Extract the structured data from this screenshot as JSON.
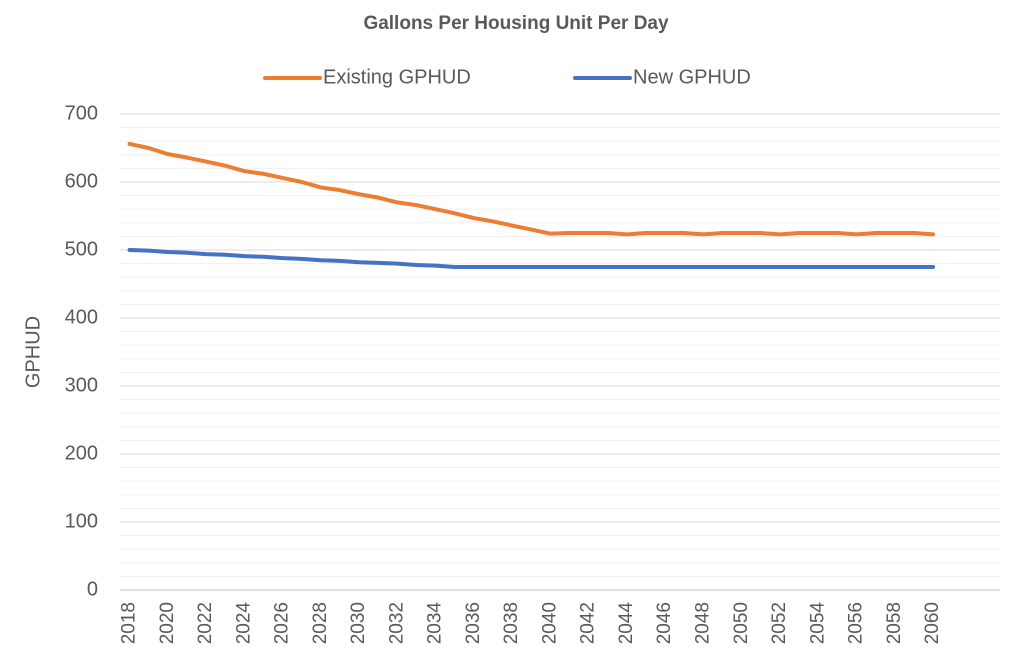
{
  "chart_data": {
    "type": "line",
    "title": "Gallons Per Housing Unit Per Day",
    "y_label": "GPHUD",
    "categories": [
      "2018",
      null,
      "2020",
      null,
      "2022",
      null,
      "2024",
      null,
      "2026",
      null,
      "2028",
      null,
      "2030",
      null,
      "2032",
      null,
      "2034",
      null,
      "2036",
      null,
      "2038",
      null,
      "2040",
      null,
      "2042",
      null,
      "2044",
      null,
      "2046",
      null,
      "2048",
      null,
      "2050",
      null,
      "2052",
      null,
      "2054",
      null,
      "2056",
      null,
      "2058",
      null,
      "2060",
      null,
      null,
      null
    ],
    "series": [
      {
        "name": "Existing GPHUD",
        "color": "#ed7d31",
        "values": [
          656,
          650,
          641,
          636,
          630,
          624,
          616,
          612,
          606,
          600,
          592,
          588,
          582,
          577,
          570,
          566,
          560,
          554,
          547,
          542,
          536,
          530,
          524,
          525,
          525,
          525,
          523,
          525,
          525,
          525,
          523,
          525,
          525,
          525,
          523,
          525,
          525,
          525,
          523,
          525,
          525,
          525,
          523,
          null,
          null,
          null
        ]
      },
      {
        "name": "New GPHUD",
        "color": "#4472c4",
        "values": [
          500,
          499,
          497,
          496,
          494,
          493,
          491,
          490,
          488,
          487,
          485,
          484,
          482,
          481,
          480,
          478,
          477,
          475,
          475,
          475,
          475,
          475,
          475,
          475,
          475,
          475,
          475,
          475,
          475,
          475,
          475,
          475,
          475,
          475,
          475,
          475,
          475,
          475,
          475,
          475,
          475,
          475,
          475,
          null,
          null,
          null
        ]
      }
    ],
    "ylim": [
      0,
      700
    ],
    "yticks": [
      0,
      100,
      200,
      300,
      400,
      500,
      600,
      700
    ],
    "yticks_minor": [
      20,
      40,
      60,
      80,
      120,
      140,
      160,
      180,
      220,
      240,
      260,
      280,
      320,
      340,
      360,
      380,
      420,
      440,
      460,
      480,
      520,
      540,
      560,
      580,
      620,
      640,
      660,
      680
    ],
    "grid": true,
    "legend": "top"
  }
}
